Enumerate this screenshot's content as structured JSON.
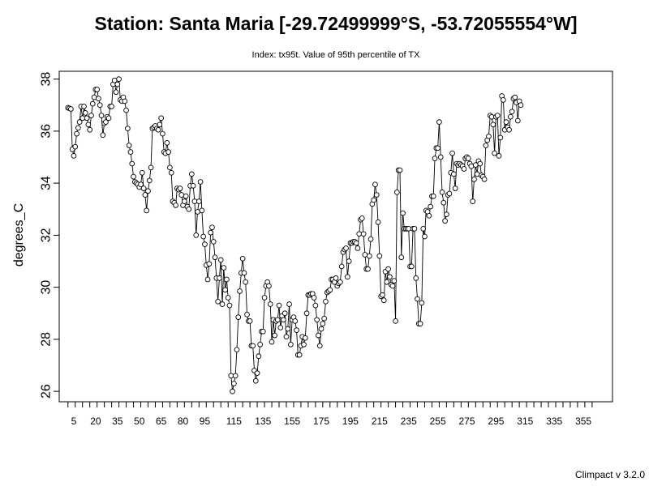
{
  "chart_data": {
    "type": "line",
    "title": "Station: Santa Maria [-29.72499999°S, -53.72055554°W]",
    "subtitle": "Index: tx95t. Value of 95th percentile of TX",
    "ylabel": "degrees_C",
    "xlabel": "",
    "footer": "Climpact v 3.2.0",
    "xlim": [
      -5,
      375
    ],
    "ylim": [
      25.6,
      38.3
    ],
    "x_ticks": [
      5,
      20,
      35,
      50,
      65,
      80,
      95,
      115,
      135,
      155,
      175,
      195,
      215,
      235,
      255,
      275,
      295,
      315,
      335,
      355
    ],
    "y_ticks": [
      26,
      28,
      30,
      32,
      34,
      36,
      38
    ],
    "grid": false,
    "marker": "open-circle",
    "anchors": [
      [
        1,
        36.9
      ],
      [
        3,
        36.85
      ],
      [
        4,
        35.3
      ],
      [
        5,
        35.05
      ],
      [
        6,
        35.4
      ],
      [
        7,
        35.9
      ],
      [
        9,
        36.35
      ],
      [
        10,
        36.95
      ],
      [
        11,
        36.5
      ],
      [
        12,
        36.95
      ],
      [
        13,
        36.7
      ],
      [
        14,
        36.5
      ],
      [
        15,
        36.25
      ],
      [
        16,
        36.05
      ],
      [
        17,
        36.6
      ],
      [
        18,
        37.05
      ],
      [
        19,
        37.3
      ],
      [
        20,
        37.6
      ],
      [
        21,
        37.6
      ],
      [
        22,
        37.25
      ],
      [
        23,
        37.0
      ],
      [
        24,
        36.6
      ],
      [
        25,
        35.85
      ],
      [
        26,
        36.3
      ],
      [
        27,
        36.35
      ],
      [
        28,
        36.55
      ],
      [
        29,
        36.5
      ],
      [
        30,
        36.95
      ],
      [
        31,
        36.95
      ],
      [
        32,
        37.8
      ],
      [
        33,
        37.95
      ],
      [
        34,
        37.5
      ],
      [
        35,
        37.8
      ],
      [
        36,
        38.0
      ],
      [
        37,
        37.2
      ],
      [
        38,
        37.15
      ],
      [
        39,
        37.3
      ],
      [
        40,
        37.15
      ],
      [
        41,
        36.8
      ],
      [
        42,
        36.1
      ],
      [
        43,
        35.45
      ],
      [
        44,
        35.2
      ],
      [
        45,
        34.75
      ],
      [
        46,
        34.25
      ],
      [
        47,
        34.05
      ],
      [
        48,
        34.0
      ],
      [
        49,
        33.95
      ],
      [
        50,
        33.85
      ],
      [
        51,
        33.95
      ],
      [
        52,
        34.4
      ],
      [
        53,
        33.8
      ],
      [
        54,
        33.55
      ],
      [
        55,
        32.95
      ],
      [
        56,
        33.7
      ],
      [
        57,
        34.1
      ],
      [
        58,
        34.6
      ],
      [
        59,
        36.1
      ],
      [
        60,
        36.15
      ],
      [
        61,
        36.2
      ],
      [
        62,
        36.1
      ],
      [
        63,
        36.05
      ],
      [
        64,
        36.25
      ],
      [
        65,
        36.5
      ],
      [
        66,
        35.9
      ],
      [
        67,
        35.2
      ],
      [
        68,
        35.15
      ],
      [
        69,
        35.55
      ],
      [
        70,
        35.2
      ],
      [
        71,
        34.6
      ],
      [
        72,
        34.4
      ],
      [
        73,
        33.3
      ],
      [
        74,
        33.25
      ],
      [
        75,
        33.15
      ],
      [
        76,
        33.8
      ],
      [
        77,
        33.75
      ],
      [
        78,
        33.8
      ],
      [
        79,
        33.55
      ],
      [
        80,
        33.15
      ],
      [
        81,
        33.3
      ],
      [
        82,
        33.5
      ],
      [
        83,
        33.1
      ],
      [
        84,
        33.0
      ],
      [
        85,
        33.9
      ],
      [
        86,
        34.35
      ],
      [
        87,
        33.9
      ],
      [
        88,
        33.3
      ],
      [
        89,
        32.0
      ],
      [
        90,
        32.9
      ],
      [
        91,
        33.3
      ],
      [
        92,
        34.05
      ],
      [
        93,
        32.95
      ],
      [
        94,
        31.95
      ],
      [
        95,
        31.65
      ],
      [
        96,
        30.85
      ],
      [
        97,
        30.3
      ],
      [
        98,
        30.9
      ],
      [
        99,
        32.1
      ],
      [
        100,
        32.3
      ],
      [
        101,
        31.75
      ],
      [
        102,
        31.15
      ],
      [
        103,
        30.35
      ],
      [
        104,
        29.45
      ],
      [
        105,
        30.35
      ],
      [
        106,
        31.05
      ],
      [
        107,
        29.35
      ],
      [
        108,
        30.75
      ],
      [
        109,
        29.9
      ],
      [
        110,
        30.3
      ],
      [
        111,
        29.6
      ],
      [
        112,
        29.3
      ],
      [
        113,
        26.6
      ],
      [
        114,
        26.0
      ],
      [
        115,
        26.3
      ],
      [
        116,
        26.6
      ],
      [
        117,
        27.6
      ],
      [
        118,
        28.85
      ],
      [
        119,
        29.85
      ],
      [
        120,
        30.55
      ],
      [
        121,
        31.1
      ],
      [
        122,
        30.55
      ],
      [
        123,
        30.2
      ],
      [
        124,
        28.95
      ],
      [
        125,
        28.7
      ],
      [
        126,
        28.7
      ],
      [
        127,
        27.75
      ],
      [
        128,
        27.75
      ],
      [
        129,
        26.8
      ],
      [
        130,
        26.4
      ],
      [
        131,
        26.7
      ],
      [
        132,
        27.35
      ],
      [
        133,
        27.8
      ],
      [
        134,
        28.3
      ],
      [
        135,
        28.3
      ],
      [
        136,
        29.6
      ],
      [
        137,
        30.05
      ],
      [
        138,
        30.2
      ],
      [
        139,
        30.05
      ],
      [
        140,
        29.35
      ],
      [
        141,
        27.9
      ],
      [
        142,
        28.75
      ],
      [
        143,
        28.15
      ],
      [
        144,
        28.7
      ],
      [
        145,
        28.75
      ],
      [
        146,
        29.3
      ],
      [
        147,
        28.45
      ],
      [
        148,
        28.9
      ],
      [
        149,
        28.75
      ],
      [
        150,
        29.0
      ],
      [
        151,
        28.1
      ],
      [
        152,
        28.4
      ],
      [
        153,
        29.35
      ],
      [
        154,
        27.8
      ],
      [
        155,
        28.75
      ],
      [
        156,
        28.85
      ],
      [
        157,
        28.7
      ],
      [
        158,
        28.35
      ],
      [
        159,
        27.4
      ],
      [
        160,
        27.4
      ],
      [
        161,
        27.75
      ],
      [
        162,
        28.1
      ],
      [
        163,
        27.8
      ],
      [
        164,
        28.05
      ],
      [
        165,
        29.0
      ],
      [
        166,
        29.7
      ],
      [
        167,
        29.7
      ],
      [
        168,
        29.75
      ],
      [
        169,
        29.75
      ],
      [
        170,
        29.6
      ],
      [
        171,
        29.3
      ],
      [
        172,
        28.75
      ],
      [
        173,
        28.15
      ],
      [
        174,
        27.75
      ],
      [
        175,
        28.4
      ],
      [
        176,
        28.6
      ],
      [
        177,
        28.8
      ],
      [
        178,
        29.45
      ],
      [
        179,
        29.8
      ],
      [
        180,
        29.85
      ],
      [
        181,
        29.9
      ],
      [
        182,
        30.3
      ],
      [
        183,
        30.3
      ],
      [
        184,
        30.2
      ],
      [
        185,
        30.35
      ],
      [
        186,
        30.05
      ],
      [
        187,
        30.15
      ],
      [
        188,
        30.2
      ],
      [
        189,
        30.8
      ],
      [
        190,
        31.35
      ],
      [
        191,
        31.45
      ],
      [
        192,
        31.5
      ],
      [
        193,
        30.4
      ],
      [
        194,
        31.0
      ],
      [
        195,
        31.7
      ],
      [
        196,
        31.7
      ],
      [
        197,
        31.75
      ],
      [
        198,
        31.75
      ],
      [
        199,
        31.7
      ],
      [
        200,
        31.5
      ],
      [
        201,
        32.05
      ],
      [
        202,
        32.6
      ],
      [
        203,
        32.65
      ],
      [
        204,
        32.05
      ],
      [
        205,
        31.25
      ],
      [
        206,
        30.7
      ],
      [
        207,
        30.7
      ],
      [
        208,
        31.2
      ],
      [
        209,
        31.85
      ],
      [
        210,
        33.2
      ],
      [
        211,
        33.35
      ],
      [
        212,
        33.95
      ],
      [
        213,
        33.55
      ],
      [
        214,
        32.5
      ],
      [
        215,
        31.2
      ],
      [
        216,
        29.65
      ],
      [
        217,
        29.7
      ],
      [
        218,
        29.5
      ],
      [
        219,
        30.6
      ],
      [
        220,
        30.2
      ],
      [
        221,
        30.7
      ],
      [
        222,
        30.4
      ],
      [
        223,
        30.1
      ],
      [
        224,
        30.05
      ],
      [
        225,
        30.25
      ],
      [
        226,
        28.7
      ],
      [
        227,
        33.65
      ],
      [
        228,
        34.5
      ],
      [
        229,
        34.5
      ],
      [
        230,
        31.15
      ],
      [
        231,
        32.85
      ],
      [
        232,
        32.25
      ],
      [
        233,
        32.25
      ],
      [
        234,
        32.25
      ],
      [
        235,
        32.25
      ],
      [
        236,
        30.8
      ],
      [
        237,
        30.8
      ],
      [
        238,
        32.25
      ],
      [
        239,
        32.25
      ],
      [
        240,
        30.35
      ],
      [
        241,
        29.55
      ],
      [
        242,
        28.6
      ],
      [
        243,
        28.6
      ],
      [
        244,
        29.4
      ],
      [
        245,
        32.25
      ],
      [
        246,
        31.95
      ],
      [
        247,
        32.95
      ],
      [
        248,
        32.9
      ],
      [
        249,
        32.75
      ],
      [
        250,
        33.1
      ],
      [
        251,
        33.5
      ],
      [
        252,
        33.5
      ],
      [
        253,
        34.95
      ],
      [
        254,
        35.35
      ],
      [
        255,
        35.35
      ],
      [
        256,
        36.35
      ],
      [
        257,
        35.0
      ],
      [
        258,
        33.65
      ],
      [
        259,
        33.25
      ],
      [
        260,
        32.55
      ],
      [
        261,
        32.8
      ],
      [
        262,
        33.55
      ],
      [
        263,
        33.6
      ],
      [
        264,
        34.4
      ],
      [
        265,
        35.15
      ],
      [
        266,
        34.35
      ],
      [
        267,
        33.8
      ],
      [
        268,
        34.75
      ],
      [
        269,
        34.7
      ],
      [
        270,
        34.75
      ],
      [
        271,
        34.7
      ],
      [
        272,
        34.65
      ],
      [
        273,
        34.55
      ],
      [
        274,
        34.95
      ],
      [
        275,
        35.0
      ],
      [
        276,
        34.95
      ],
      [
        277,
        34.75
      ],
      [
        278,
        34.65
      ],
      [
        279,
        33.3
      ],
      [
        280,
        34.15
      ],
      [
        281,
        34.7
      ],
      [
        282,
        34.35
      ],
      [
        283,
        34.85
      ],
      [
        284,
        34.75
      ],
      [
        285,
        34.3
      ],
      [
        286,
        34.25
      ],
      [
        287,
        34.15
      ],
      [
        288,
        35.45
      ],
      [
        289,
        35.65
      ],
      [
        290,
        35.8
      ],
      [
        291,
        36.6
      ],
      [
        292,
        36.55
      ],
      [
        293,
        36.25
      ],
      [
        294,
        35.15
      ],
      [
        295,
        36.55
      ],
      [
        296,
        36.6
      ],
      [
        297,
        35.05
      ],
      [
        298,
        35.75
      ],
      [
        299,
        37.35
      ],
      [
        300,
        37.2
      ],
      [
        301,
        36.05
      ],
      [
        302,
        36.35
      ],
      [
        303,
        36.15
      ],
      [
        304,
        36.05
      ],
      [
        305,
        36.55
      ],
      [
        306,
        36.75
      ],
      [
        307,
        37.25
      ],
      [
        308,
        37.3
      ],
      [
        309,
        37.1
      ],
      [
        310,
        36.4
      ],
      [
        311,
        37.15
      ],
      [
        312,
        37.0
      ]
    ]
  }
}
